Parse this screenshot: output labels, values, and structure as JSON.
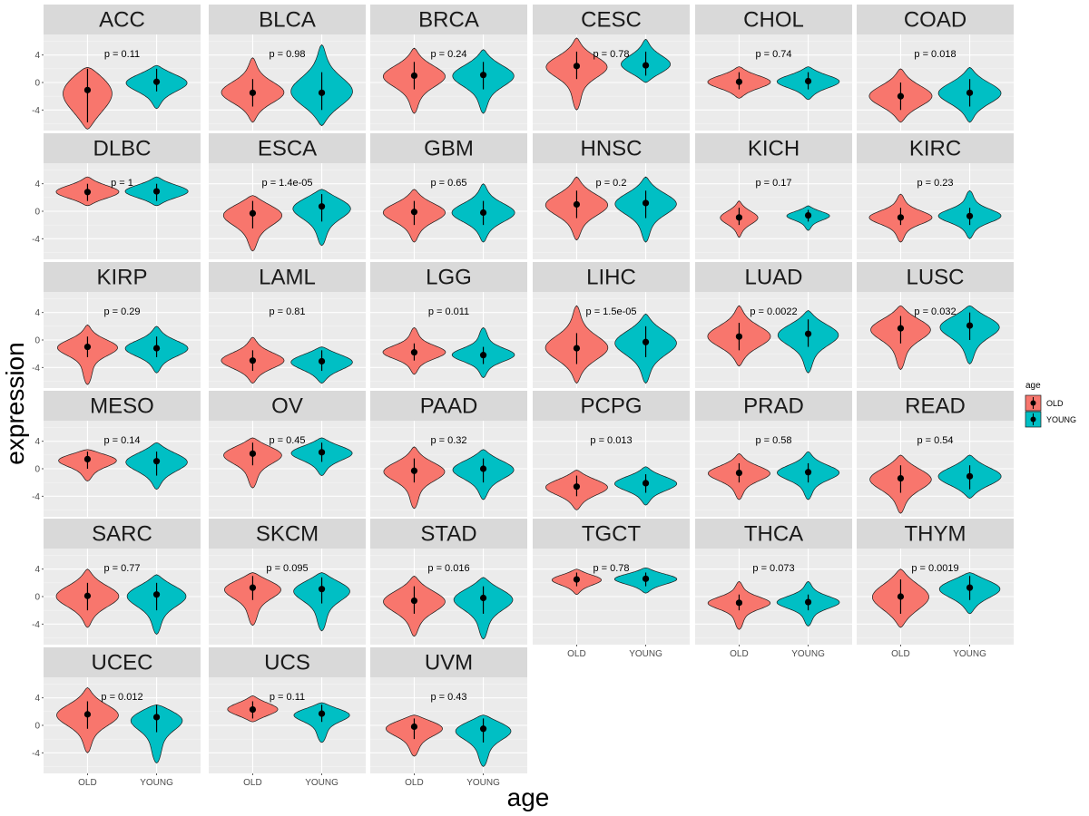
{
  "chart_data": {
    "type": "violin",
    "xlabel": "age",
    "ylabel": "expression",
    "categories": [
      "OLD",
      "YOUNG"
    ],
    "y_ticks": [
      4,
      0,
      -4
    ],
    "ylim": [
      -7,
      7
    ],
    "legend": {
      "title": "age",
      "placement": "right",
      "entries": [
        {
          "label": "OLD",
          "color": "#F8766D"
        },
        {
          "label": "YOUNG",
          "color": "#00BFC4"
        }
      ]
    },
    "colors": {
      "OLD": "#F8766D",
      "YOUNG": "#00BFC4"
    },
    "panels": [
      {
        "name": "ACC",
        "p_label": "p = 0.11",
        "old": {
          "median": -1.1,
          "lower": -5.8,
          "upper": 2.0,
          "min": -6.8,
          "max": 2.2,
          "width": 0.8
        },
        "young": {
          "median": 0.1,
          "lower": -1.3,
          "upper": 2.0,
          "min": -3.8,
          "max": 2.5,
          "width": 1.0
        }
      },
      {
        "name": "BLCA",
        "p_label": "p = 0.98",
        "old": {
          "median": -1.5,
          "lower": -3.5,
          "upper": 0.5,
          "min": -5.8,
          "max": 3.6,
          "width": 1.0
        },
        "young": {
          "median": -1.5,
          "lower": -4.0,
          "upper": 1.5,
          "min": -6.3,
          "max": 5.5,
          "width": 1.0
        }
      },
      {
        "name": "BRCA",
        "p_label": "p = 0.24",
        "old": {
          "median": 1.0,
          "lower": -1.0,
          "upper": 3.0,
          "min": -4.5,
          "max": 5.0,
          "width": 1.0
        },
        "young": {
          "median": 1.1,
          "lower": -1.0,
          "upper": 3.0,
          "min": -4.5,
          "max": 4.8,
          "width": 1.0
        }
      },
      {
        "name": "CESC",
        "p_label": "p = 0.78",
        "old": {
          "median": 2.4,
          "lower": 0.5,
          "upper": 4.5,
          "min": -4.0,
          "max": 6.5,
          "width": 1.0
        },
        "young": {
          "median": 2.5,
          "lower": 1.0,
          "upper": 4.5,
          "min": 0.0,
          "max": 6.3,
          "width": 0.8
        }
      },
      {
        "name": "CHOL",
        "p_label": "p = 0.74",
        "old": {
          "median": 0.1,
          "lower": -1.0,
          "upper": 1.5,
          "min": -2.3,
          "max": 2.3,
          "width": 1.0
        },
        "young": {
          "median": 0.2,
          "lower": -1.0,
          "upper": 1.5,
          "min": -2.5,
          "max": 2.3,
          "width": 1.0
        }
      },
      {
        "name": "COAD",
        "p_label": "p = 0.018",
        "old": {
          "median": -2.0,
          "lower": -4.0,
          "upper": 0.0,
          "min": -5.8,
          "max": 2.0,
          "width": 1.0
        },
        "young": {
          "median": -1.5,
          "lower": -3.5,
          "upper": 0.5,
          "min": -5.8,
          "max": 2.2,
          "width": 1.0
        }
      },
      {
        "name": "DLBC",
        "p_label": "p = 1",
        "old": {
          "median": 2.8,
          "lower": 1.5,
          "upper": 4.0,
          "min": 0.8,
          "max": 5.0,
          "width": 1.0
        },
        "young": {
          "median": 2.9,
          "lower": 1.5,
          "upper": 4.0,
          "min": 0.8,
          "max": 5.0,
          "width": 1.0
        }
      },
      {
        "name": "ESCA",
        "p_label": "p = 1.4e-05",
        "old": {
          "median": -0.3,
          "lower": -2.5,
          "upper": 1.5,
          "min": -5.8,
          "max": 2.3,
          "width": 1.0
        },
        "young": {
          "median": 0.7,
          "lower": -1.5,
          "upper": 2.5,
          "min": -5.0,
          "max": 3.2,
          "width": 1.0
        }
      },
      {
        "name": "GBM",
        "p_label": "p = 0.65",
        "old": {
          "median": -0.1,
          "lower": -2.0,
          "upper": 1.5,
          "min": -4.5,
          "max": 3.2,
          "width": 1.0
        },
        "young": {
          "median": -0.2,
          "lower": -2.0,
          "upper": 1.5,
          "min": -4.5,
          "max": 4.0,
          "width": 1.0
        }
      },
      {
        "name": "HNSC",
        "p_label": "p = 0.2",
        "old": {
          "median": 1.0,
          "lower": -1.0,
          "upper": 3.0,
          "min": -4.2,
          "max": 5.0,
          "width": 1.0
        },
        "young": {
          "median": 1.2,
          "lower": -1.0,
          "upper": 3.0,
          "min": -4.5,
          "max": 5.0,
          "width": 1.0
        }
      },
      {
        "name": "KICH",
        "p_label": "p = 0.17",
        "old": {
          "median": -0.9,
          "lower": -2.0,
          "upper": 0.5,
          "min": -3.8,
          "max": 1.5,
          "width": 0.6
        },
        "young": {
          "median": -0.6,
          "lower": -1.5,
          "upper": 0.2,
          "min": -2.8,
          "max": 0.8,
          "width": 0.7
        }
      },
      {
        "name": "KIRC",
        "p_label": "p = 0.23",
        "old": {
          "median": -0.9,
          "lower": -2.0,
          "upper": 0.5,
          "min": -4.5,
          "max": 2.5,
          "width": 1.0
        },
        "young": {
          "median": -0.7,
          "lower": -2.0,
          "upper": 0.5,
          "min": -4.0,
          "max": 3.0,
          "width": 1.0
        }
      },
      {
        "name": "KIRP",
        "p_label": "p = 0.29",
        "old": {
          "median": -1.0,
          "lower": -2.5,
          "upper": 0.5,
          "min": -6.5,
          "max": 2.2,
          "width": 1.0
        },
        "young": {
          "median": -1.2,
          "lower": -2.5,
          "upper": 0.5,
          "min": -4.8,
          "max": 2.0,
          "width": 1.0
        }
      },
      {
        "name": "LAML",
        "p_label": "p = 0.81",
        "old": {
          "median": -3.0,
          "lower": -4.5,
          "upper": -1.5,
          "min": -6.3,
          "max": 0.4,
          "width": 1.0
        },
        "young": {
          "median": -3.1,
          "lower": -4.5,
          "upper": -1.5,
          "min": -6.3,
          "max": -1.0,
          "width": 1.0
        }
      },
      {
        "name": "LGG",
        "p_label": "p = 0.011",
        "old": {
          "median": -1.8,
          "lower": -3.0,
          "upper": -0.5,
          "min": -5.0,
          "max": 1.8,
          "width": 1.0
        },
        "young": {
          "median": -2.2,
          "lower": -3.5,
          "upper": -1.0,
          "min": -5.5,
          "max": 1.8,
          "width": 1.0
        }
      },
      {
        "name": "LIHC",
        "p_label": "p = 1.5e-05",
        "old": {
          "median": -1.2,
          "lower": -3.5,
          "upper": 1.0,
          "min": -6.3,
          "max": 5.0,
          "width": 1.0
        },
        "young": {
          "median": -0.3,
          "lower": -2.5,
          "upper": 2.0,
          "min": -6.3,
          "max": 3.8,
          "width": 1.0
        }
      },
      {
        "name": "LUAD",
        "p_label": "p = 0.0022",
        "old": {
          "median": 0.5,
          "lower": -1.5,
          "upper": 2.5,
          "min": -3.8,
          "max": 5.0,
          "width": 1.0
        },
        "young": {
          "median": 0.9,
          "lower": -1.0,
          "upper": 3.0,
          "min": -4.8,
          "max": 4.3,
          "width": 1.0
        }
      },
      {
        "name": "LUSC",
        "p_label": "p = 0.032",
        "old": {
          "median": 1.7,
          "lower": -0.5,
          "upper": 3.5,
          "min": -4.3,
          "max": 5.0,
          "width": 1.0
        },
        "young": {
          "median": 2.1,
          "lower": 0.0,
          "upper": 4.0,
          "min": -3.5,
          "max": 5.0,
          "width": 1.0
        }
      },
      {
        "name": "MESO",
        "p_label": "p = 0.14",
        "old": {
          "median": 1.4,
          "lower": 0.0,
          "upper": 2.5,
          "min": -1.8,
          "max": 2.8,
          "width": 1.0
        },
        "young": {
          "median": 1.1,
          "lower": -1.0,
          "upper": 2.5,
          "min": -3.0,
          "max": 3.8,
          "width": 1.0
        }
      },
      {
        "name": "OV",
        "p_label": "p = 0.45",
        "old": {
          "median": 2.2,
          "lower": 0.5,
          "upper": 3.8,
          "min": -2.8,
          "max": 4.5,
          "width": 1.0
        },
        "young": {
          "median": 2.4,
          "lower": 1.0,
          "upper": 3.8,
          "min": -1.0,
          "max": 4.5,
          "width": 1.0
        }
      },
      {
        "name": "PAAD",
        "p_label": "p = 0.32",
        "old": {
          "median": -0.3,
          "lower": -2.0,
          "upper": 1.5,
          "min": -5.8,
          "max": 3.2,
          "width": 1.0
        },
        "young": {
          "median": 0.0,
          "lower": -2.0,
          "upper": 1.5,
          "min": -4.5,
          "max": 2.8,
          "width": 1.0
        }
      },
      {
        "name": "PCPG",
        "p_label": "p = 0.013",
        "old": {
          "median": -2.6,
          "lower": -4.0,
          "upper": -1.0,
          "min": -6.0,
          "max": -0.2,
          "width": 1.0
        },
        "young": {
          "median": -2.1,
          "lower": -3.5,
          "upper": -0.8,
          "min": -5.3,
          "max": 0.3,
          "width": 1.0
        }
      },
      {
        "name": "PRAD",
        "p_label": "p = 0.58",
        "old": {
          "median": -0.6,
          "lower": -2.0,
          "upper": 0.8,
          "min": -4.5,
          "max": 2.2,
          "width": 1.0
        },
        "young": {
          "median": -0.5,
          "lower": -2.0,
          "upper": 0.8,
          "min": -4.5,
          "max": 2.5,
          "width": 1.0
        }
      },
      {
        "name": "READ",
        "p_label": "p = 0.54",
        "old": {
          "median": -1.4,
          "lower": -3.5,
          "upper": 0.5,
          "min": -6.5,
          "max": 2.0,
          "width": 1.0
        },
        "young": {
          "median": -1.1,
          "lower": -3.0,
          "upper": 0.5,
          "min": -4.3,
          "max": 2.0,
          "width": 1.0
        }
      },
      {
        "name": "SARC",
        "p_label": "p = 0.77",
        "old": {
          "median": 0.1,
          "lower": -2.0,
          "upper": 2.0,
          "min": -4.5,
          "max": 4.0,
          "width": 1.0
        },
        "young": {
          "median": 0.3,
          "lower": -2.0,
          "upper": 2.0,
          "min": -5.5,
          "max": 3.2,
          "width": 1.0
        }
      },
      {
        "name": "SKCM",
        "p_label": "p = 0.095",
        "old": {
          "median": 1.3,
          "lower": -0.5,
          "upper": 3.0,
          "min": -4.2,
          "max": 3.5,
          "width": 1.0
        },
        "young": {
          "median": 1.1,
          "lower": -1.0,
          "upper": 2.8,
          "min": -5.0,
          "max": 3.5,
          "width": 1.0
        }
      },
      {
        "name": "STAD",
        "p_label": "p = 0.016",
        "old": {
          "median": -0.6,
          "lower": -2.5,
          "upper": 1.5,
          "min": -5.8,
          "max": 3.0,
          "width": 1.0
        },
        "young": {
          "median": -0.2,
          "lower": -2.5,
          "upper": 1.5,
          "min": -6.2,
          "max": 2.8,
          "width": 1.0
        }
      },
      {
        "name": "TGCT",
        "p_label": "p = 0.78",
        "old": {
          "median": 2.5,
          "lower": 1.5,
          "upper": 3.5,
          "min": 0.3,
          "max": 4.0,
          "width": 0.8
        },
        "young": {
          "median": 2.6,
          "lower": 1.5,
          "upper": 3.5,
          "min": 0.5,
          "max": 4.2,
          "width": 1.0
        }
      },
      {
        "name": "THCA",
        "p_label": "p = 0.073",
        "old": {
          "median": -0.9,
          "lower": -2.0,
          "upper": 0.3,
          "min": -4.8,
          "max": 2.2,
          "width": 1.0
        },
        "young": {
          "median": -0.8,
          "lower": -2.0,
          "upper": 0.3,
          "min": -4.3,
          "max": 2.2,
          "width": 1.0
        }
      },
      {
        "name": "THYM",
        "p_label": "p = 0.0019",
        "old": {
          "median": 0.0,
          "lower": -2.5,
          "upper": 2.5,
          "min": -4.5,
          "max": 4.0,
          "width": 0.9
        },
        "young": {
          "median": 1.3,
          "lower": -0.5,
          "upper": 3.0,
          "min": -2.5,
          "max": 3.5,
          "width": 1.0
        }
      },
      {
        "name": "UCEC",
        "p_label": "p = 0.012",
        "old": {
          "median": 1.6,
          "lower": -0.5,
          "upper": 3.5,
          "min": -4.0,
          "max": 5.5,
          "width": 1.0
        },
        "young": {
          "median": 1.2,
          "lower": -1.0,
          "upper": 3.0,
          "min": -5.5,
          "max": 3.0,
          "width": 1.0
        }
      },
      {
        "name": "UCS",
        "p_label": "p = 0.11",
        "old": {
          "median": 2.3,
          "lower": 1.0,
          "upper": 3.5,
          "min": 0.5,
          "max": 4.3,
          "width": 0.8
        },
        "young": {
          "median": 1.7,
          "lower": 0.5,
          "upper": 3.0,
          "min": -2.5,
          "max": 3.3,
          "width": 1.0
        }
      },
      {
        "name": "UVM",
        "p_label": "p = 0.43",
        "old": {
          "median": -0.2,
          "lower": -2.0,
          "upper": 1.0,
          "min": -4.5,
          "max": 1.5,
          "width": 1.0
        },
        "young": {
          "median": -0.5,
          "lower": -2.5,
          "upper": 1.0,
          "min": -6.0,
          "max": 1.5,
          "width": 1.0
        }
      }
    ]
  }
}
